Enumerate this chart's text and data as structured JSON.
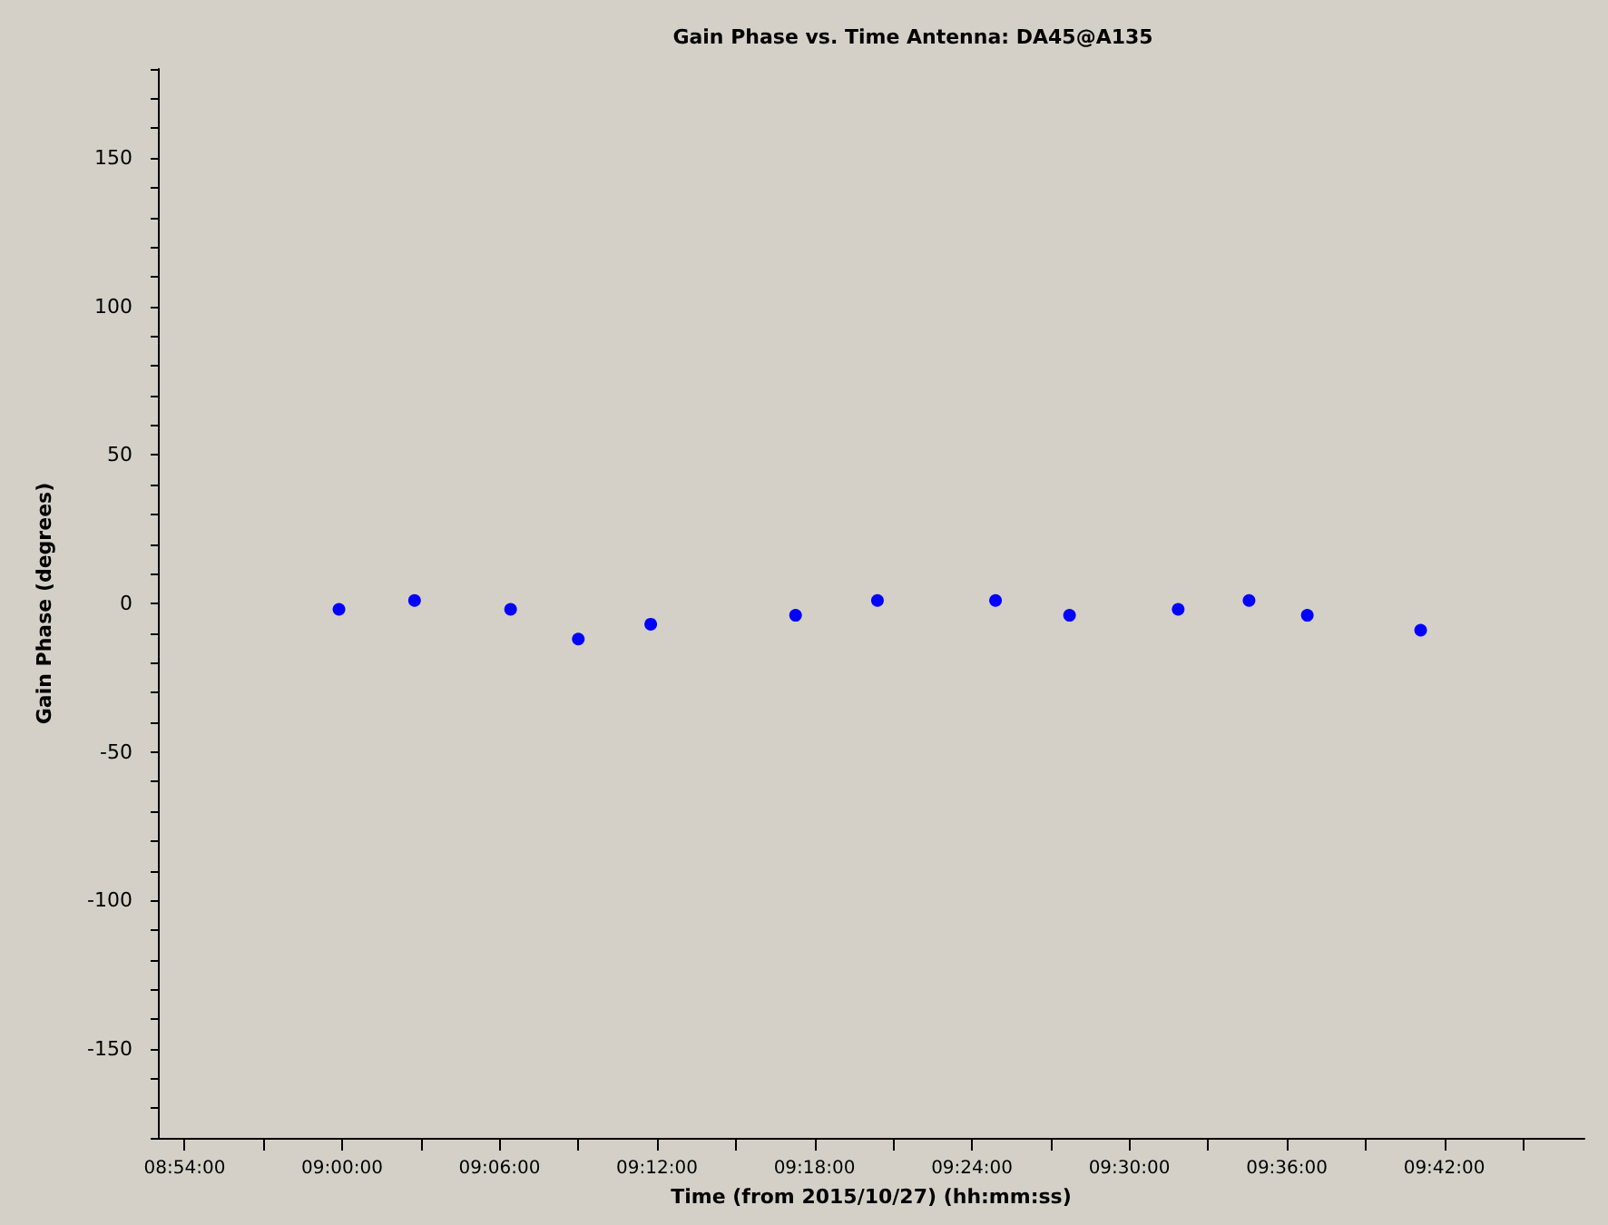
{
  "chart_data": {
    "type": "scatter",
    "title": "Gain Phase vs. Time Antenna: DA45@A135",
    "xlabel": "Time (from 2015/10/27) (hh:mm:ss)",
    "ylabel": "Gain Phase (degrees)",
    "x": [
      8.998,
      9.046,
      9.107,
      9.15,
      9.196,
      9.288,
      9.34,
      9.415,
      9.462,
      9.531,
      9.576,
      9.613,
      9.685
    ],
    "series": [
      {
        "color": "#0000ff",
        "values": [
          -2,
          1,
          -2,
          -12,
          -7,
          -4,
          1,
          1,
          -4,
          -2,
          1,
          -4,
          -9
        ]
      }
    ],
    "marker": "circle",
    "xlim": [
      8.883,
      9.789
    ],
    "xticks": [
      {
        "value": 8.9,
        "label": "08:54:00"
      },
      {
        "value": 8.95,
        "label": null
      },
      {
        "value": 9.0,
        "label": "09:00:00"
      },
      {
        "value": 9.05,
        "label": null
      },
      {
        "value": 9.1,
        "label": "09:06:00"
      },
      {
        "value": 9.15,
        "label": null
      },
      {
        "value": 9.2,
        "label": "09:12:00"
      },
      {
        "value": 9.25,
        "label": null
      },
      {
        "value": 9.3,
        "label": "09:18:00"
      },
      {
        "value": 9.35,
        "label": null
      },
      {
        "value": 9.4,
        "label": "09:24:00"
      },
      {
        "value": 9.45,
        "label": null
      },
      {
        "value": 9.5,
        "label": "09:30:00"
      },
      {
        "value": 9.55,
        "label": null
      },
      {
        "value": 9.6,
        "label": "09:36:00"
      },
      {
        "value": 9.65,
        "label": null
      },
      {
        "value": 9.7,
        "label": "09:42:00"
      },
      {
        "value": 9.75,
        "label": null
      }
    ],
    "ylim": [
      -180,
      180
    ],
    "yticks": [
      {
        "value": -180,
        "label": null
      },
      {
        "value": -170,
        "label": null
      },
      {
        "value": -160,
        "label": null
      },
      -150,
      {
        "value": -140,
        "label": null
      },
      {
        "value": -130,
        "label": null
      },
      {
        "value": -120,
        "label": null
      },
      {
        "value": -110,
        "label": null
      },
      -100,
      {
        "value": -90,
        "label": null
      },
      {
        "value": -80,
        "label": null
      },
      {
        "value": -70,
        "label": null
      },
      {
        "value": -60,
        "label": null
      },
      -50,
      {
        "value": -40,
        "label": null
      },
      {
        "value": -30,
        "label": null
      },
      {
        "value": -20,
        "label": null
      },
      {
        "value": -10,
        "label": null
      },
      0,
      {
        "value": 10,
        "label": null
      },
      {
        "value": 20,
        "label": null
      },
      {
        "value": 30,
        "label": null
      },
      {
        "value": 40,
        "label": null
      },
      50,
      {
        "value": 60,
        "label": null
      },
      {
        "value": 70,
        "label": null
      },
      {
        "value": 80,
        "label": null
      },
      {
        "value": 90,
        "label": null
      },
      100,
      {
        "value": 110,
        "label": null
      },
      {
        "value": 120,
        "label": null
      },
      {
        "value": 130,
        "label": null
      },
      {
        "value": 140,
        "label": null
      },
      150,
      {
        "value": 160,
        "label": null
      },
      {
        "value": 170,
        "label": null
      },
      {
        "value": 180,
        "label": null
      }
    ],
    "grid": false
  }
}
